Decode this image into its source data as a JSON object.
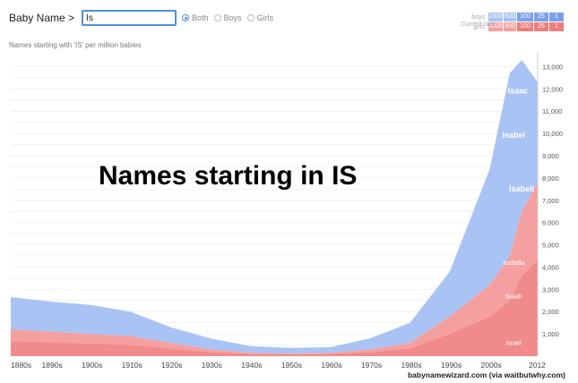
{
  "header": {
    "label": "Baby Name >",
    "input_value": "Is",
    "radio_options": [
      "Both",
      "Boys",
      "Girls"
    ],
    "selected": "Both"
  },
  "legend": {
    "rows": [
      {
        "label": "boys",
        "cells": [
          "1000",
          "500",
          "100",
          "25",
          "1"
        ]
      },
      {
        "label": "girls",
        "cells": [
          "1000",
          "500",
          "100",
          "25",
          "1"
        ]
      }
    ],
    "caption": "Current rank"
  },
  "subtitle": "Names starting with 'IS' per million babies",
  "overlay_title": "Names starting in IS",
  "credit": "babynamewizard.com (via waitbutwhy.com)",
  "colors": {
    "boys": "#a9c3f5",
    "girls": "#f5a0a0",
    "girls_dark": "#ef7c7c",
    "accent": "#4f8fe0"
  },
  "chart_data": {
    "type": "area",
    "x": [
      1880,
      1890,
      1900,
      1910,
      1920,
      1930,
      1940,
      1950,
      1960,
      1970,
      1980,
      1990,
      2000,
      2005,
      2008,
      2012
    ],
    "ylim": [
      0,
      13500
    ],
    "yticks": [
      "1,000",
      "2,000",
      "3,000",
      "4,000",
      "5,000",
      "6,000",
      "7,000",
      "8,000",
      "9,000",
      "10,000",
      "11,000",
      "12,000",
      "13,000"
    ],
    "xticks": [
      "1880s",
      "1890s",
      "1900s",
      "1910s",
      "1920s",
      "1930s",
      "1940s",
      "1950s",
      "1960s",
      "1970s",
      "1980s",
      "1990s",
      "2000s",
      "2012"
    ],
    "series": [
      {
        "group": "girls",
        "values": [
          1200,
          1100,
          1000,
          900,
          600,
          300,
          150,
          120,
          150,
          300,
          600,
          1800,
          3200,
          4500,
          6500,
          7800
        ]
      },
      {
        "group": "boys",
        "values": [
          1450,
          1350,
          1300,
          1100,
          700,
          500,
          300,
          250,
          250,
          500,
          900,
          2000,
          5200,
          8200,
          6800,
          4500
        ]
      }
    ],
    "annotations": [
      "Isaac",
      "Isabel",
      "Isabell",
      "Isabella",
      "Isaiah",
      "Israel"
    ]
  }
}
